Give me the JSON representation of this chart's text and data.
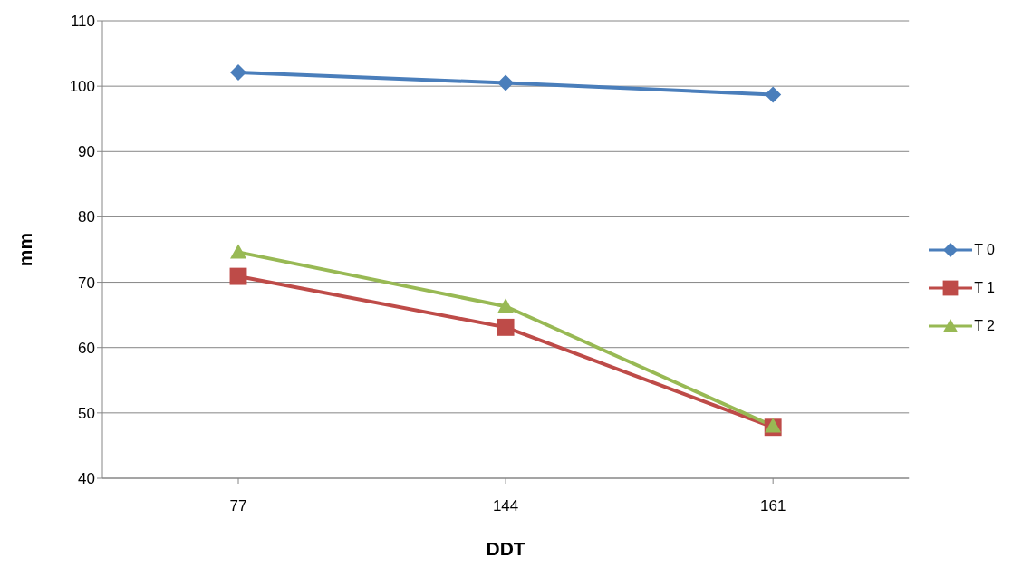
{
  "chart_data": {
    "type": "line",
    "xlabel": "DDT",
    "ylabel": "mm",
    "categories": [
      "77",
      "144",
      "161"
    ],
    "series": [
      {
        "name": "T 0",
        "color": "#4a7ebb",
        "marker": "diamond",
        "values": [
          102.1,
          100.5,
          98.7
        ]
      },
      {
        "name": "T 1",
        "color": "#be4b48",
        "marker": "square",
        "values": [
          70.9,
          63.1,
          47.8
        ]
      },
      {
        "name": "T 2",
        "color": "#98b954",
        "marker": "triangle",
        "values": [
          74.6,
          66.3,
          48.0
        ]
      }
    ],
    "ylim": [
      40,
      110
    ],
    "yticks": [
      40,
      50,
      60,
      70,
      80,
      90,
      100,
      110
    ],
    "grid": "y",
    "legend": "right",
    "line_style": "solid"
  }
}
